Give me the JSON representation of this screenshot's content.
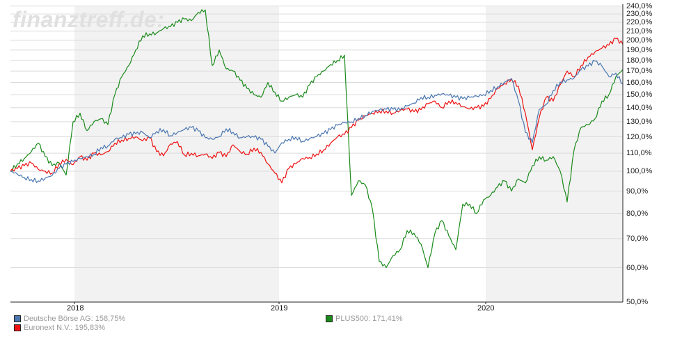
{
  "watermark": "finanztreff.de:",
  "chart_data": {
    "type": "line",
    "title": "",
    "xlabel": "",
    "ylabel": "",
    "yscale": "log",
    "ylim": [
      50,
      240
    ],
    "y_ticks": [
      "240,0%",
      "230,0%",
      "220,0%",
      "210,0%",
      "200,0%",
      "190,0%",
      "180,0%",
      "170,0%",
      "160,0%",
      "150,0%",
      "140,0%",
      "130,0%",
      "120,0%",
      "110,0%",
      "100,0%",
      "90,0%",
      "80,0%",
      "70,0%",
      "60,0%",
      "50,0%"
    ],
    "y_tick_values": [
      240,
      230,
      220,
      210,
      200,
      190,
      180,
      170,
      160,
      150,
      140,
      130,
      120,
      110,
      100,
      90,
      80,
      70,
      60,
      50
    ],
    "x_ticks": [
      "2018",
      "2019",
      "2020"
    ],
    "x_range": "approx. Sep 2017 – Sep 2020",
    "grid": true,
    "legend_position": "bottom",
    "sample_step_note": "values sampled at ~10 px intervals (~12 trading days) from start to end",
    "series": [
      {
        "name": "Deutsche Börse AG",
        "legend": "Deutsche Börse AG: 158,75%",
        "last_value": 158.75,
        "color": "#4a76b0",
        "values": [
          100,
          98.5,
          96.7,
          95.7,
          95.0,
          96.4,
          97.8,
          101.5,
          103.8,
          105.3,
          106.9,
          108.1,
          109.3,
          113.4,
          114.2,
          118.5,
          119.4,
          121.6,
          122.0,
          122.9,
          119.4,
          123.4,
          124.7,
          120.7,
          122.9,
          124.7,
          126.1,
          123.8,
          119.4,
          118.5,
          120.2,
          125.2,
          122.9,
          119.4,
          120.2,
          119.8,
          118.5,
          114.2,
          110.1,
          116.3,
          118.5,
          119.8,
          117.2,
          118.9,
          120.2,
          122.0,
          124.7,
          127.6,
          129.5,
          129.9,
          132.3,
          134.3,
          137.3,
          138.3,
          138.8,
          138.8,
          138.3,
          141.4,
          143.5,
          147.9,
          147.9,
          149.5,
          150.6,
          149.5,
          147.9,
          146.8,
          147.9,
          148.9,
          150.0,
          153.4,
          156.3,
          160.3,
          163.4,
          145.1,
          122.9,
          116.3,
          138.8,
          142.5,
          153.4,
          160.3,
          162.2,
          163.9,
          171.3,
          174.5,
          179.2,
          174.5,
          165.1,
          168.2,
          158.75
        ]
      },
      {
        "name": "Euronext N.V.",
        "legend": "Euronext N.V.: 195,83%",
        "last_value": 195.83,
        "color": "#ee1111",
        "values": [
          100,
          101.5,
          103.0,
          104.5,
          101.0,
          100.0,
          99.0,
          104.0,
          106.5,
          103.5,
          108.0,
          106.0,
          110.0,
          109.0,
          111.0,
          116.0,
          118.0,
          119.0,
          120.0,
          117.5,
          119.5,
          111.0,
          108.5,
          115.5,
          117.0,
          109.0,
          110.0,
          108.5,
          109.5,
          107.0,
          110.5,
          108.0,
          115.0,
          111.0,
          109.5,
          113.0,
          110.5,
          104.0,
          99.0,
          94.0,
          101.5,
          104.0,
          107.0,
          107.5,
          109.5,
          112.0,
          116.0,
          120.0,
          121.5,
          126.0,
          131.0,
          134.0,
          136.0,
          137.5,
          137.5,
          136.0,
          138.0,
          139.0,
          137.0,
          138.5,
          143.0,
          145.0,
          140.0,
          145.0,
          144.0,
          141.0,
          139.0,
          140.0,
          141.0,
          147.0,
          155.0,
          159.0,
          163.0,
          157.0,
          136.0,
          112.0,
          133.0,
          148.0,
          145.0,
          158.0,
          170.0,
          165.0,
          175.0,
          183.0,
          188.0,
          192.0,
          195.0,
          202.0,
          195.83
        ]
      },
      {
        "name": "PLUS500",
        "legend": "PLUS500: 171,41%",
        "last_value": 171.41,
        "color": "#1a8a1a",
        "values": [
          100,
          104.0,
          107.0,
          111.0,
          116.0,
          108.0,
          103.0,
          104.5,
          98.0,
          130.0,
          136.0,
          124.0,
          130.0,
          132.0,
          128.0,
          150.0,
          165.0,
          175.0,
          190.0,
          205.0,
          207.0,
          208.0,
          213.0,
          215.0,
          220.0,
          224.0,
          222.0,
          232.0,
          235.0,
          175.0,
          190.0,
          172.0,
          170.0,
          162.0,
          155.0,
          150.0,
          148.0,
          160.0,
          152.0,
          145.0,
          148.0,
          150.0,
          148.0,
          158.0,
          165.0,
          170.0,
          176.0,
          180.0,
          185.0,
          88.0,
          95.0,
          93.0,
          82.0,
          62.0,
          60.0,
          64.0,
          66.0,
          73.0,
          72.0,
          68.0,
          60.0,
          72.0,
          77.0,
          71.0,
          66.0,
          84.0,
          84.0,
          80.0,
          86.0,
          88.0,
          92.0,
          95.0,
          90.0,
          96.0,
          94.0,
          103.0,
          108.0,
          106.0,
          108.0,
          100.0,
          85.0,
          112.0,
          126.0,
          128.0,
          132.0,
          145.0,
          150.0,
          165.0,
          171.41
        ]
      }
    ]
  },
  "legend": [
    {
      "label": "Deutsche Börse AG: 158,75%",
      "color": "#4a76b0"
    },
    {
      "label": "Euronext N.V.: 195,83%",
      "color": "#ee1111"
    },
    {
      "label": "PLUS500: 171,41%",
      "color": "#1a8a1a"
    }
  ]
}
